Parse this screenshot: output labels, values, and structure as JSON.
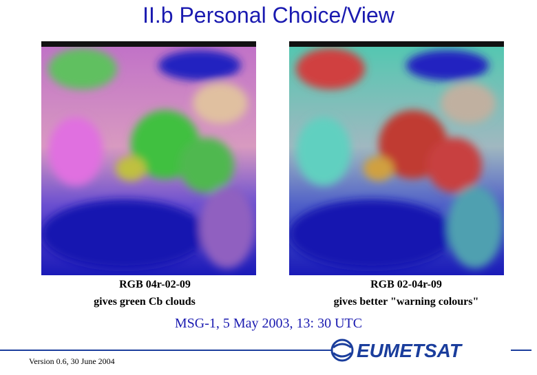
{
  "header": {
    "title": "II.b Personal Choice/View"
  },
  "images": [
    {
      "caption_line1": "RGB 04r-02-09",
      "caption_line2": "gives green Cb clouds"
    },
    {
      "caption_line1": "RGB 02-04r-09",
      "caption_line2": "gives better \"warning colours\""
    }
  ],
  "subtitle": "MSG-1, 5 May 2003, 13: 30 UTC",
  "footer": {
    "version": "Version 0.6, 30 June 2004",
    "logo": "EUMETSAT"
  }
}
